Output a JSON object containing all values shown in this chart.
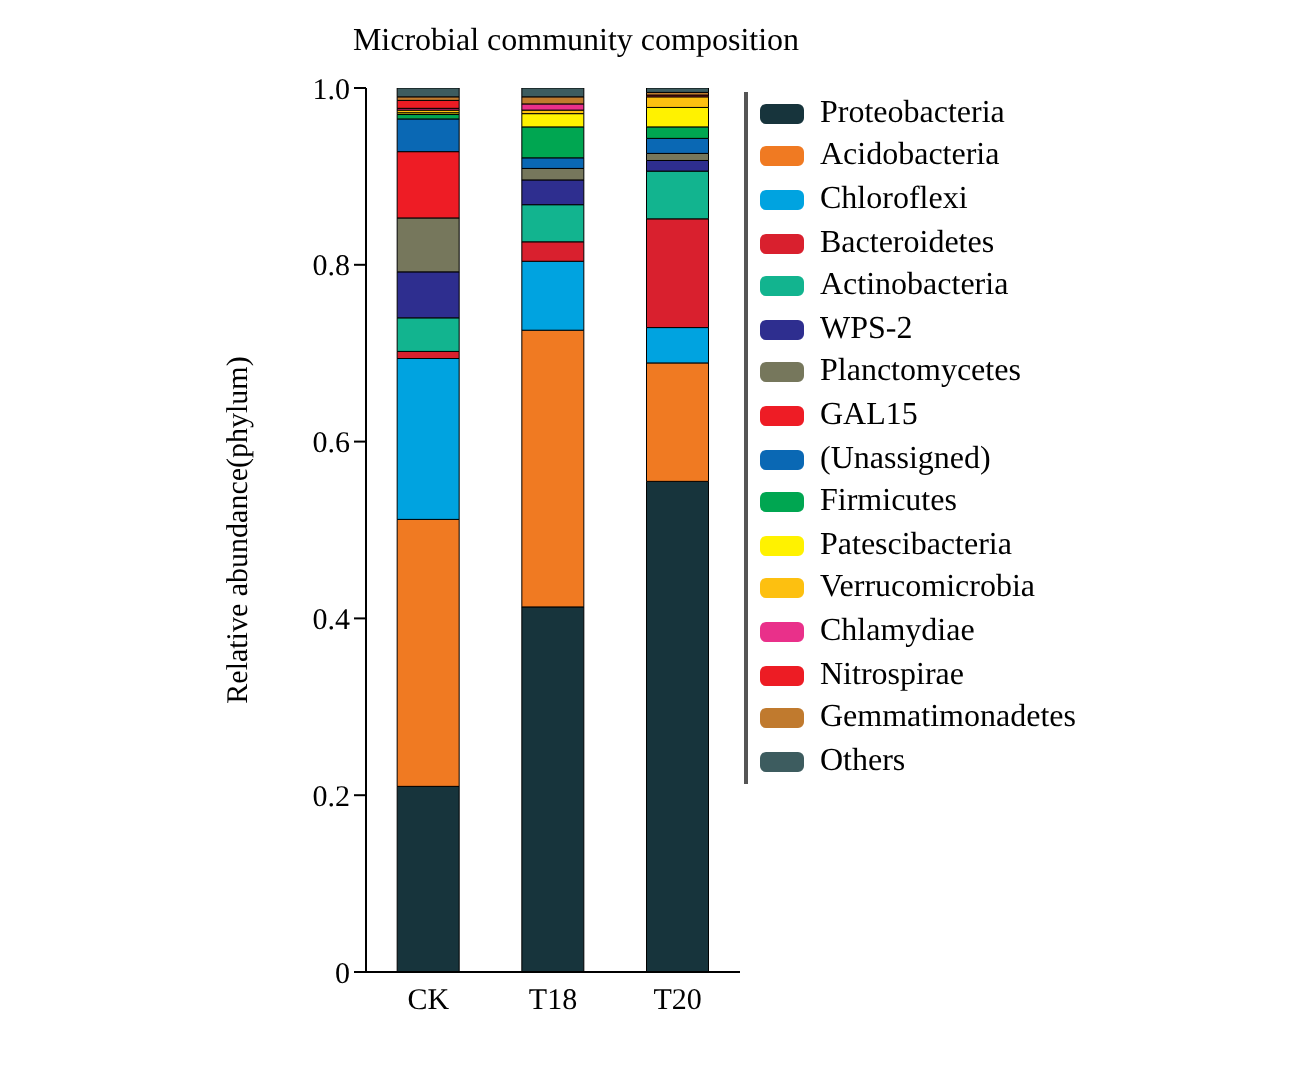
{
  "chart_data": {
    "type": "bar",
    "title": "Microbial community composition",
    "ylabel": "Relative abundance(phylum)",
    "categories": [
      "CK",
      "T18",
      "T20"
    ],
    "stacked": true,
    "ylim": [
      0,
      1
    ],
    "yticks": [
      0,
      0.2,
      0.4,
      0.6,
      0.8,
      {
        "value": 1,
        "label": "1.0"
      }
    ],
    "grid": false,
    "legend": "right",
    "series": [
      {
        "name": "Proteobacteria",
        "color": "#17343c",
        "values": [
          0.21,
          0.413,
          0.555
        ]
      },
      {
        "name": "Acidobacteria",
        "color": "#f07a22",
        "values": [
          0.302,
          0.313,
          0.134
        ]
      },
      {
        "name": "Chloroflexi",
        "color": "#00a3e0",
        "values": [
          0.182,
          0.078,
          0.04
        ]
      },
      {
        "name": "Bacteroidetes",
        "color": "#d9202e",
        "values": [
          0.008,
          0.022,
          0.123
        ]
      },
      {
        "name": "Actinobacteria",
        "color": "#12b48f",
        "values": [
          0.038,
          0.042,
          0.054
        ]
      },
      {
        "name": "WPS-2",
        "color": "#2e2e8f",
        "values": [
          0.052,
          0.028,
          0.012
        ]
      },
      {
        "name": "Planctomycetes",
        "color": "#76775c",
        "values": [
          0.061,
          0.013,
          0.008
        ]
      },
      {
        "name": "GAL15",
        "color": "#ee1c25",
        "values": [
          0.075,
          0,
          0
        ]
      },
      {
        "name": "(Unassigned)",
        "color": "#0a68b4",
        "values": [
          0.037,
          0.012,
          0.017
        ]
      },
      {
        "name": "Firmicutes",
        "color": "#00a651",
        "values": [
          0.005,
          0.035,
          0.013
        ]
      },
      {
        "name": "Patescibacteria",
        "color": "#fff200",
        "values": [
          0.002,
          0.015,
          0.022
        ]
      },
      {
        "name": "Verrucomicrobia",
        "color": "#fdc010",
        "values": [
          0.003,
          0.004,
          0.012
        ]
      },
      {
        "name": "Chlamydiae",
        "color": "#e9308a",
        "values": [
          0.002,
          0.007,
          0
        ]
      },
      {
        "name": "Nitrospirae",
        "color": "#ed1c24",
        "values": [
          0.009,
          0,
          0.002
        ]
      },
      {
        "name": "Gemmatimonadetes",
        "color": "#c07a2e",
        "values": [
          0.004,
          0.008,
          0.003
        ]
      },
      {
        "name": "Others",
        "color": "#3d5c5f",
        "values": [
          0.01,
          0.01,
          0.005
        ]
      }
    ]
  }
}
